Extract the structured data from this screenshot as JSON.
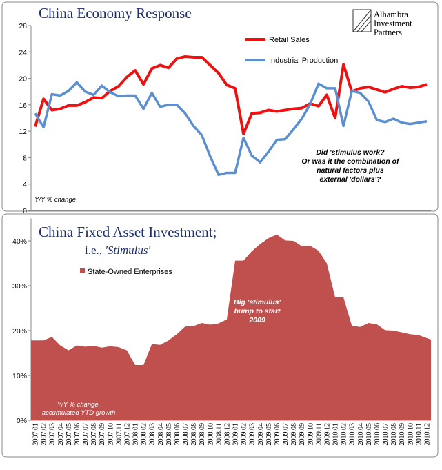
{
  "logo": [
    "Alhambra",
    "Investment",
    "Partners"
  ],
  "chart_data": [
    {
      "type": "line",
      "title": "China Economy Response",
      "y_label": "Y/Y % change",
      "annotation": [
        "Did 'stimulus work?",
        "Or was it the combination of",
        "natural factors plus",
        "external 'dollars'?"
      ],
      "ylim": [
        0,
        28
      ],
      "yticks": [
        0,
        4,
        8,
        12,
        16,
        20,
        24,
        28
      ],
      "grid": false,
      "series": [
        {
          "name": "Retail Sales",
          "color": "#ee1111",
          "values": [
            12.7,
            16.9,
            15.2,
            15.4,
            15.9,
            15.9,
            16.4,
            17.1,
            17.0,
            18.1,
            18.8,
            20.2,
            21.2,
            19.1,
            21.5,
            22.0,
            21.6,
            23.0,
            23.3,
            23.2,
            23.2,
            22.0,
            20.8,
            19.0,
            18.5,
            11.6,
            14.7,
            14.8,
            15.2,
            15.0,
            15.2,
            15.4,
            15.5,
            16.2,
            15.8,
            17.5,
            14.0,
            22.1,
            18.0,
            18.5,
            18.7,
            18.3,
            17.9,
            18.4,
            18.8,
            18.6,
            18.7,
            19.1
          ]
        },
        {
          "name": "Industrial Production",
          "color": "#5b8fd0",
          "values": [
            14.7,
            12.6,
            17.6,
            17.4,
            18.1,
            19.4,
            18.0,
            17.5,
            18.9,
            17.9,
            17.3,
            17.4,
            17.4,
            15.4,
            17.8,
            15.7,
            16.0,
            16.0,
            14.7,
            12.8,
            11.4,
            8.2,
            5.4,
            5.7,
            5.7,
            11.0,
            8.3,
            7.3,
            8.9,
            10.7,
            10.8,
            12.3,
            13.9,
            16.1,
            19.2,
            18.5,
            18.5,
            12.8,
            18.1,
            17.8,
            16.5,
            13.7,
            13.4,
            13.9,
            13.3,
            13.1,
            13.3,
            13.5
          ]
        }
      ]
    },
    {
      "type": "area",
      "title": "China Fixed Asset Investment;",
      "subtitle": [
        "i.e.,",
        "'Stimulus'"
      ],
      "annotation": [
        "Big 'stimulus'",
        "bump to start",
        "2009"
      ],
      "y_label": [
        "Y/Y % change,",
        "accumulated YTD growth"
      ],
      "categories": [
        "2007.01",
        "2007.02",
        "2007.03",
        "2007.04",
        "2007.05",
        "2007.06",
        "2007.07",
        "2007.08",
        "2007.09",
        "2007.10",
        "2007.11",
        "2007.12",
        "2008.01",
        "2008.02",
        "2008.03",
        "2008.04",
        "2008.05",
        "2008.06",
        "2008.07",
        "2008.08",
        "2008.09",
        "2008.10",
        "2008.11",
        "2008.12",
        "2009.01",
        "2009.02",
        "2009.03",
        "2009.04",
        "2009.05",
        "2009.06",
        "2009.07",
        "2009.08",
        "2009.09",
        "2009.10",
        "2009.11",
        "2009.12",
        "2010.01",
        "2010.02",
        "2010.03",
        "2010.04",
        "2010.05",
        "2010.06",
        "2010.07",
        "2010.08",
        "2010.09",
        "2010.10",
        "2010.11",
        "2010.12"
      ],
      "ylim": [
        0,
        45
      ],
      "yticks": [
        {
          "value": 0,
          "label": "0%"
        },
        {
          "value": 10,
          "label": "10%"
        },
        {
          "value": 20,
          "label": "20%"
        },
        {
          "value": 30,
          "label": "30%"
        },
        {
          "value": 40,
          "label": "40%"
        }
      ],
      "grid": false,
      "series": [
        {
          "name": "State-Owned Enterprises",
          "color": "#c0504d",
          "values": [
            17.8,
            17.8,
            18.6,
            16.7,
            15.6,
            16.7,
            16.4,
            16.6,
            16.2,
            16.5,
            16.3,
            15.6,
            12.3,
            12.3,
            17.0,
            16.8,
            17.8,
            19.2,
            20.9,
            21.0,
            21.7,
            21.3,
            21.6,
            22.5,
            35.6,
            35.6,
            37.7,
            39.3,
            40.6,
            41.4,
            40.1,
            40.0,
            38.8,
            38.9,
            37.8,
            35.0,
            27.4,
            27.4,
            21.1,
            20.8,
            21.7,
            21.4,
            20.1,
            20.0,
            19.6,
            19.2,
            19.0,
            18.0
          ]
        }
      ]
    }
  ]
}
